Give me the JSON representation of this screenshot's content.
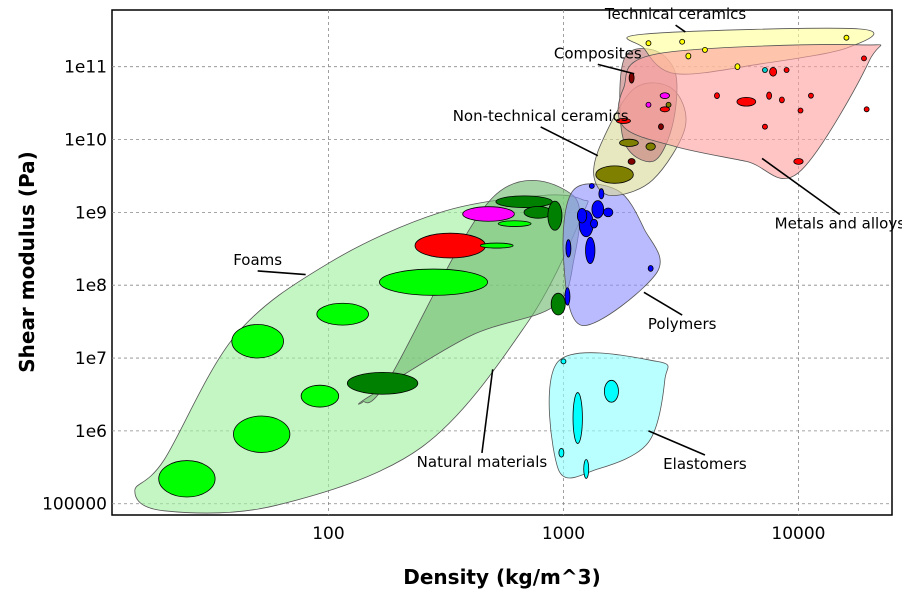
{
  "chart_data": {
    "type": "scatter",
    "title": "",
    "xlabel": "Density (kg/m^3)",
    "ylabel": "Shear modulus (Pa)",
    "xscale": "log",
    "yscale": "log",
    "xlim": [
      12,
      25000
    ],
    "ylim": [
      70000,
      600000000000
    ],
    "grid": true,
    "x_ticks": [
      {
        "value": 100,
        "label": "100"
      },
      {
        "value": 1000,
        "label": "1000"
      },
      {
        "value": 10000,
        "label": "10000"
      }
    ],
    "y_ticks": [
      {
        "value": 100000,
        "label": "100000"
      },
      {
        "value": 1000000,
        "label": "1e6"
      },
      {
        "value": 10000000,
        "label": "1e7"
      },
      {
        "value": 100000000,
        "label": "1e8"
      },
      {
        "value": 1000000000,
        "label": "1e9"
      },
      {
        "value": 10000000000,
        "label": "1e10"
      },
      {
        "value": 100000000000,
        "label": "1e11"
      }
    ],
    "families": [
      {
        "name": "Foams",
        "color": "#9ff09f",
        "hull": [
          [
            20,
            400000
          ],
          [
            15,
            150000
          ],
          [
            20,
            80000
          ],
          [
            60,
            95000
          ],
          [
            250,
            600000
          ],
          [
            700,
            30000000
          ],
          [
            1200,
            900000000
          ],
          [
            1200,
            1500000000
          ],
          [
            800,
            1700000000
          ],
          [
            300,
            1000000000
          ],
          [
            100,
            200000000
          ],
          [
            40,
            20000000
          ]
        ]
      },
      {
        "name": "Natural materials",
        "color": "#6fba6f",
        "hull": [
          [
            140,
            2500000
          ],
          [
            180,
            5000000
          ],
          [
            500,
            1600000000
          ],
          [
            1100,
            1700000000
          ],
          [
            1100,
            200000000
          ],
          [
            900,
            50000000
          ],
          [
            400,
            20000000
          ],
          [
            150,
            3000000
          ]
        ]
      },
      {
        "name": "Polymers",
        "color": "#8f8fff",
        "hull": [
          [
            1100,
            2000000000
          ],
          [
            1700,
            2000000000
          ],
          [
            2200,
            600000000
          ],
          [
            2500,
            150000000
          ],
          [
            1200,
            28000000
          ],
          [
            1000,
            250000000
          ]
        ]
      },
      {
        "name": "Elastomers",
        "color": "#8fffff",
        "hull": [
          [
            950,
            9000000
          ],
          [
            2500,
            9000000
          ],
          [
            2700,
            5000000
          ],
          [
            2300,
            700000
          ],
          [
            1400,
            300000
          ],
          [
            950,
            300000
          ]
        ]
      },
      {
        "name": "Non-technical ceramics",
        "color": "#d8d89a",
        "hull": [
          [
            1350,
            3000000000
          ],
          [
            1600,
            1700000000
          ],
          [
            2400,
            2800000000
          ],
          [
            3300,
            15000000000
          ],
          [
            2900,
            50000000000
          ],
          [
            2000,
            50000000000
          ],
          [
            1450,
            9000000000
          ]
        ]
      },
      {
        "name": "Composites",
        "color": "#c47a7a",
        "hull": [
          [
            1800,
            120000000000
          ],
          [
            2400,
            170000000000
          ],
          [
            3000,
            80000000000
          ],
          [
            2900,
            15000000000
          ],
          [
            2400,
            5000000000
          ],
          [
            1800,
            10000000000
          ]
        ]
      },
      {
        "name": "Technical ceramics",
        "color": "#ffff99",
        "hull": [
          [
            2200,
            180000000000
          ],
          [
            2200,
            280000000000
          ],
          [
            18000,
            330000000000
          ],
          [
            16000,
            180000000000
          ],
          [
            7000,
            110000000000
          ],
          [
            3000,
            80000000000
          ]
        ]
      },
      {
        "name": "Metals and alloys",
        "color": "#ff9f9f",
        "hull": [
          [
            1800,
            15000000000
          ],
          [
            1800,
            50000000000
          ],
          [
            2500,
            150000000000
          ],
          [
            18000,
            200000000000
          ],
          [
            20000,
            120000000000
          ],
          [
            10000,
            3500000000
          ],
          [
            6000,
            5000000000
          ],
          [
            3000,
            8000000000
          ]
        ]
      }
    ],
    "materials": [
      {
        "family": "Foams",
        "color": "#00ff00",
        "x": 25,
        "y": 220000,
        "rx": 0.12,
        "ry": 0.25
      },
      {
        "family": "Foams",
        "color": "#00ff00",
        "x": 52,
        "y": 900000,
        "rx": 0.12,
        "ry": 0.25
      },
      {
        "family": "Foams",
        "color": "#00ff00",
        "x": 92,
        "y": 3000000,
        "rx": 0.08,
        "ry": 0.15
      },
      {
        "family": "Foams",
        "color": "#00ff00",
        "x": 50,
        "y": 17000000,
        "rx": 0.11,
        "ry": 0.23
      },
      {
        "family": "Foams",
        "color": "#00ff00",
        "x": 115,
        "y": 40000000,
        "rx": 0.11,
        "ry": 0.15
      },
      {
        "family": "Foams",
        "color": "#00ff00",
        "x": 280,
        "y": 110000000,
        "rx": 0.23,
        "ry": 0.18
      },
      {
        "family": "Foams",
        "color": "#ff0000",
        "x": 330,
        "y": 350000000,
        "rx": 0.15,
        "ry": 0.17
      },
      {
        "family": "Foams",
        "color": "#ff00ff",
        "x": 480,
        "y": 950000000,
        "rx": 0.11,
        "ry": 0.1
      },
      {
        "family": "Foams",
        "color": "#00ff00",
        "x": 620,
        "y": 700000000,
        "rx": 0.07,
        "ry": 0.04
      },
      {
        "family": "Foams",
        "color": "#00ff00",
        "x": 520,
        "y": 350000000,
        "rx": 0.07,
        "ry": 0.03
      },
      {
        "family": "Natural materials",
        "color": "#008000",
        "x": 170,
        "y": 4500000,
        "rx": 0.15,
        "ry": 0.15
      },
      {
        "family": "Natural materials",
        "color": "#008000",
        "x": 680,
        "y": 1400000000,
        "rx": 0.12,
        "ry": 0.08
      },
      {
        "family": "Natural materials",
        "color": "#008000",
        "x": 780,
        "y": 1000000000,
        "rx": 0.06,
        "ry": 0.08
      },
      {
        "family": "Natural materials",
        "color": "#008000",
        "x": 920,
        "y": 900000000,
        "rx": 0.03,
        "ry": 0.2
      },
      {
        "family": "Natural materials",
        "color": "#008000",
        "x": 950,
        "y": 55000000,
        "rx": 0.03,
        "ry": 0.15
      },
      {
        "family": "Polymers",
        "color": "#0000ff",
        "x": 1050,
        "y": 320000000,
        "rx": 0.01,
        "ry": 0.12
      },
      {
        "family": "Polymers",
        "color": "#0000ff",
        "x": 1250,
        "y": 700000000,
        "rx": 0.03,
        "ry": 0.18
      },
      {
        "family": "Polymers",
        "color": "#0000ff",
        "x": 1300,
        "y": 300000000,
        "rx": 0.02,
        "ry": 0.18
      },
      {
        "family": "Polymers",
        "color": "#0000ff",
        "x": 1400,
        "y": 1100000000,
        "rx": 0.025,
        "ry": 0.12
      },
      {
        "family": "Polymers",
        "color": "#0000ff",
        "x": 1200,
        "y": 900000000,
        "rx": 0.02,
        "ry": 0.1
      },
      {
        "family": "Polymers",
        "color": "#0000ff",
        "x": 1550,
        "y": 1000000000,
        "rx": 0.02,
        "ry": 0.06
      },
      {
        "family": "Polymers",
        "color": "#0000ff",
        "x": 1450,
        "y": 1800000000,
        "rx": 0.007,
        "ry": 0.07
      },
      {
        "family": "Polymers",
        "color": "#0000ff",
        "x": 1350,
        "y": 700000000,
        "rx": 0.015,
        "ry": 0.06
      },
      {
        "family": "Polymers",
        "color": "#0000ff",
        "x": 1320,
        "y": 2300000000,
        "rx": 0.008,
        "ry": 0.02
      },
      {
        "family": "Polymers",
        "color": "#0000ff",
        "x": 1040,
        "y": 70000000,
        "rx": 0.01,
        "ry": 0.12
      },
      {
        "family": "Polymers",
        "color": "#0000ff",
        "x": 2350,
        "y": 170000000,
        "rx": 0.01,
        "ry": 0.04
      },
      {
        "family": "Elastomers",
        "color": "#00ffff",
        "x": 1150,
        "y": 1500000,
        "rx": 0.02,
        "ry": 0.35
      },
      {
        "family": "Elastomers",
        "color": "#00ffff",
        "x": 1600,
        "y": 3500000,
        "rx": 0.03,
        "ry": 0.15
      },
      {
        "family": "Elastomers",
        "color": "#00ffff",
        "x": 980,
        "y": 500000,
        "rx": 0.007,
        "ry": 0.06
      },
      {
        "family": "Elastomers",
        "color": "#00ffff",
        "x": 1250,
        "y": 300000,
        "rx": 0.007,
        "ry": 0.13
      },
      {
        "family": "Elastomers",
        "color": "#00ffff",
        "x": 1000,
        "y": 9000000,
        "rx": 0.007,
        "ry": 0.02
      },
      {
        "family": "Non-technical ceramics",
        "color": "#808000",
        "x": 1650,
        "y": 3300000000,
        "rx": 0.08,
        "ry": 0.12
      },
      {
        "family": "Non-technical ceramics",
        "color": "#808000",
        "x": 1900,
        "y": 9000000000,
        "rx": 0.04,
        "ry": 0.05
      },
      {
        "family": "Non-technical ceramics",
        "color": "#808000",
        "x": 2350,
        "y": 8000000000,
        "rx": 0.02,
        "ry": 0.05
      },
      {
        "family": "Composites",
        "color": "#800000",
        "x": 1950,
        "y": 5000000000,
        "rx": 0.015,
        "ry": 0.04
      },
      {
        "family": "Composites",
        "color": "#800000",
        "x": 1950,
        "y": 70000000000,
        "rx": 0.008,
        "ry": 0.07
      },
      {
        "family": "Composites",
        "color": "#ff00ff",
        "x": 2700,
        "y": 40000000000,
        "rx": 0.02,
        "ry": 0.04
      },
      {
        "family": "Composites",
        "color": "#ff00ff",
        "x": 2300,
        "y": 30000000000,
        "rx": 0.01,
        "ry": 0.02
      },
      {
        "family": "Composites",
        "color": "#808000",
        "x": 2800,
        "y": 30000000000,
        "rx": 0.01,
        "ry": 0.03
      },
      {
        "family": "Composites",
        "color": "#800000",
        "x": 2600,
        "y": 15000000000,
        "rx": 0.005,
        "ry": 0.04
      },
      {
        "family": "Technical ceramics",
        "color": "#ffff00",
        "x": 2300,
        "y": 210000000000,
        "rx": 0.01,
        "ry": 0.02
      },
      {
        "family": "Technical ceramics",
        "color": "#ffff00",
        "x": 3200,
        "y": 220000000000,
        "rx": 0.008,
        "ry": 0.02
      },
      {
        "family": "Technical ceramics",
        "color": "#ffff00",
        "x": 3400,
        "y": 140000000000,
        "rx": 0.01,
        "ry": 0.04
      },
      {
        "family": "Technical ceramics",
        "color": "#ffff00",
        "x": 4000,
        "y": 170000000000,
        "rx": 0.007,
        "ry": 0.02
      },
      {
        "family": "Technical ceramics",
        "color": "#ffff00",
        "x": 5500,
        "y": 100000000000,
        "rx": 0.008,
        "ry": 0.04
      },
      {
        "family": "Technical ceramics",
        "color": "#ffff00",
        "x": 16000,
        "y": 250000000000,
        "rx": 0.01,
        "ry": 0.02
      },
      {
        "family": "Technical ceramics",
        "color": "#00cccc",
        "x": 7200,
        "y": 90000000000,
        "rx": 0.006,
        "ry": 0.02
      },
      {
        "family": "Metals and alloys",
        "color": "#ff0000",
        "x": 1800,
        "y": 18000000000,
        "rx": 0.03,
        "ry": 0.02
      },
      {
        "family": "Metals and alloys",
        "color": "#ff0000",
        "x": 2700,
        "y": 26000000000,
        "rx": 0.02,
        "ry": 0.03
      },
      {
        "family": "Metals and alloys",
        "color": "#ff0000",
        "x": 4500,
        "y": 40000000000,
        "rx": 0.008,
        "ry": 0.04
      },
      {
        "family": "Metals and alloys",
        "color": "#ff0000",
        "x": 6000,
        "y": 33000000000,
        "rx": 0.04,
        "ry": 0.06
      },
      {
        "family": "Metals and alloys",
        "color": "#ff0000",
        "x": 7800,
        "y": 85000000000,
        "rx": 0.015,
        "ry": 0.06
      },
      {
        "family": "Metals and alloys",
        "color": "#ff0000",
        "x": 7500,
        "y": 40000000000,
        "rx": 0.01,
        "ry": 0.05
      },
      {
        "family": "Metals and alloys",
        "color": "#ff0000",
        "x": 8500,
        "y": 35000000000,
        "rx": 0.008,
        "ry": 0.04
      },
      {
        "family": "Metals and alloys",
        "color": "#ff0000",
        "x": 8900,
        "y": 90000000000,
        "rx": 0.008,
        "ry": 0.02
      },
      {
        "family": "Metals and alloys",
        "color": "#ff0000",
        "x": 10200,
        "y": 25000000000,
        "rx": 0.008,
        "ry": 0.03
      },
      {
        "family": "Metals and alloys",
        "color": "#ff0000",
        "x": 11300,
        "y": 40000000000,
        "rx": 0.008,
        "ry": 0.03
      },
      {
        "family": "Metals and alloys",
        "color": "#ff0000",
        "x": 10000,
        "y": 5000000000,
        "rx": 0.02,
        "ry": 0.04
      },
      {
        "family": "Metals and alloys",
        "color": "#ff0000",
        "x": 19000,
        "y": 130000000000,
        "rx": 0.01,
        "ry": 0.02
      },
      {
        "family": "Metals and alloys",
        "color": "#ff0000",
        "x": 19500,
        "y": 26000000000,
        "rx": 0.005,
        "ry": 0.02
      },
      {
        "family": "Metals and alloys",
        "color": "#ff0000",
        "x": 7200,
        "y": 15000000000,
        "rx": 0.006,
        "ry": 0.03
      }
    ],
    "annotations": [
      {
        "text": "Technical ceramics",
        "x": 3000,
        "y": 450000000000,
        "tx": 3300,
        "ty": 300000000000
      },
      {
        "text": "Composites",
        "x": 1400,
        "y": 130000000000,
        "tx": 2000,
        "ty": 80000000000
      },
      {
        "text": "Non-technical ceramics",
        "x": 800,
        "y": 18000000000,
        "tx": 1400,
        "ty": 6000000000
      },
      {
        "text": "Foams",
        "x": 50,
        "y": 190000000,
        "tx": 80,
        "ty": 140000000
      },
      {
        "text": "Metals and alloys",
        "x": 15000,
        "y": 600000000,
        "tx": 7000,
        "ty": 5500000000
      },
      {
        "text": "Polymers",
        "x": 3200,
        "y": 25000000,
        "tx": 2200,
        "ty": 80000000
      },
      {
        "text": "Natural materials",
        "x": 450,
        "y": 320000,
        "tx": 500,
        "ty": 7000000
      },
      {
        "text": "Elastomers",
        "x": 4000,
        "y": 300000,
        "tx": 2300,
        "ty": 1000000
      }
    ]
  }
}
